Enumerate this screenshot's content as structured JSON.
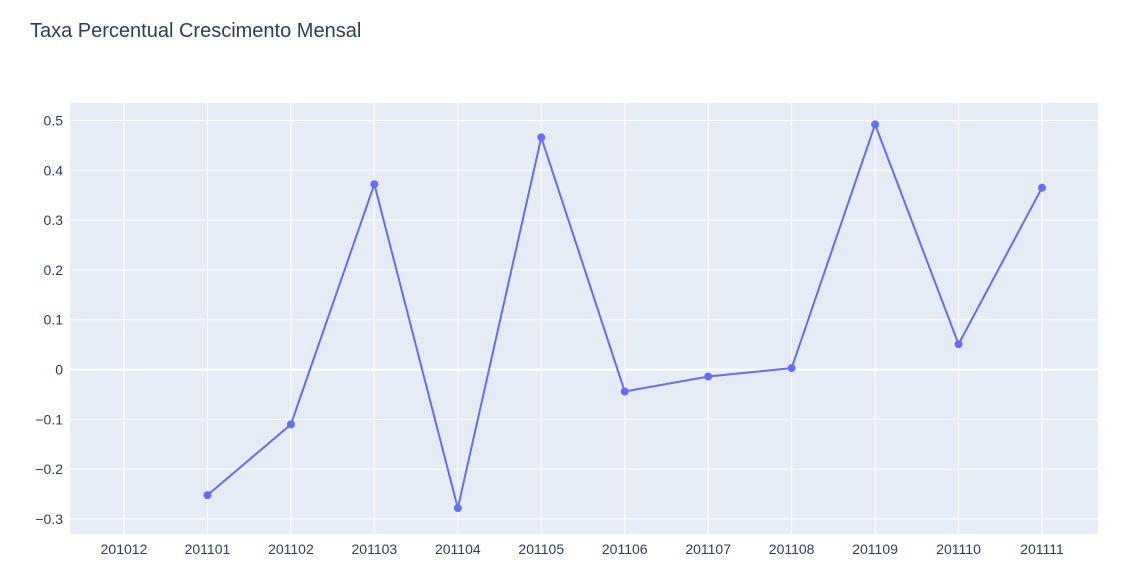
{
  "chart_data": {
    "type": "line",
    "title": "Taxa Percentual Crescimento Mensal",
    "xlabel": "",
    "ylabel": "",
    "x_tick_labels": [
      "201012",
      "201101",
      "201102",
      "201103",
      "201104",
      "201105",
      "201106",
      "201107",
      "201108",
      "201109",
      "201110",
      "201111"
    ],
    "y_tick_values": [
      0.5,
      0.4,
      0.3,
      0.2,
      0.1,
      0,
      -0.1,
      -0.2,
      -0.3
    ],
    "y_tick_labels": [
      "0.5",
      "0.4",
      "0.3",
      "0.2",
      "0.1",
      "0",
      "−0.1",
      "−0.2",
      "−0.3"
    ],
    "ylim": [
      -0.33,
      0.535
    ],
    "grid": true,
    "series": [
      {
        "x": [
          "201012",
          "201101",
          "201102",
          "201103",
          "201104",
          "201105",
          "201106",
          "201107",
          "201108",
          "201109",
          "201110",
          "201111"
        ],
        "values": [
          null,
          -0.252,
          -0.11,
          0.372,
          -0.278,
          0.466,
          -0.044,
          -0.014,
          0.003,
          0.492,
          0.051,
          0.365
        ],
        "mode": "lines+markers"
      }
    ],
    "colors": {
      "line": "#636efa",
      "plot_background": "#e5ecf6",
      "grid": "#ffffff",
      "text": "#2a3f5f"
    }
  }
}
